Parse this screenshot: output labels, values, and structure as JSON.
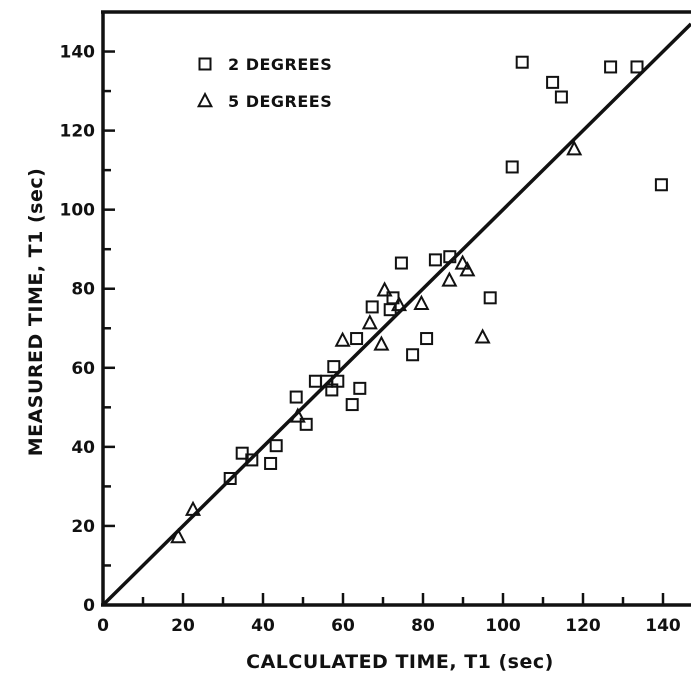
{
  "chart_data": {
    "type": "scatter",
    "xlabel": "CALCULATED TIME, T1 (sec)",
    "ylabel": "MEASURED TIME, T1 (sec)",
    "xlim": [
      0,
      147
    ],
    "ylim": [
      0,
      150
    ],
    "x_ticks": [
      0,
      20,
      40,
      60,
      80,
      100,
      120,
      140
    ],
    "y_ticks": [
      0,
      20,
      40,
      60,
      80,
      100,
      120,
      140
    ],
    "x_tick_labels": [
      "0",
      "20",
      "40",
      "60",
      "80",
      "100",
      "120",
      "140"
    ],
    "y_tick_labels": [
      "0",
      "20",
      "40",
      "60",
      "80",
      "100",
      "120",
      "140"
    ],
    "legend_position": "top-left",
    "reference_line": {
      "type": "identity",
      "from": [
        0,
        0
      ],
      "to": [
        147,
        147
      ]
    },
    "series": [
      {
        "name": "2 DEGREES",
        "marker": "square",
        "points": [
          [
            31.8,
            32
          ],
          [
            34.8,
            38.4
          ],
          [
            37.2,
            36.7
          ],
          [
            41.9,
            35.8
          ],
          [
            43.3,
            40.3
          ],
          [
            48.3,
            52.6
          ],
          [
            50.8,
            45.7
          ],
          [
            53.1,
            56.6
          ],
          [
            55.9,
            56.6
          ],
          [
            57.7,
            60.3
          ],
          [
            57.2,
            54.4
          ],
          [
            58.7,
            56.6
          ],
          [
            62.3,
            50.7
          ],
          [
            63.4,
            67.4
          ],
          [
            64.2,
            54.8
          ],
          [
            67.3,
            75.4
          ],
          [
            71.8,
            74.7
          ],
          [
            72.5,
            77.7
          ],
          [
            74.6,
            86.5
          ],
          [
            77.4,
            63.3
          ],
          [
            80.9,
            67.4
          ],
          [
            83.1,
            87.3
          ],
          [
            86.7,
            88.1
          ],
          [
            96.8,
            77.7
          ],
          [
            102.3,
            110.8
          ],
          [
            104.8,
            137.3
          ],
          [
            112.4,
            132.2
          ],
          [
            114.6,
            128.5
          ],
          [
            126.9,
            136.1
          ],
          [
            133.5,
            136.1
          ],
          [
            139.6,
            106.3
          ]
        ]
      },
      {
        "name": "5 DEGREES",
        "marker": "triangle",
        "points": [
          [
            18.8,
            17.2
          ],
          [
            22.5,
            24.1
          ],
          [
            48.7,
            47.7
          ],
          [
            59.9,
            66.9
          ],
          [
            66.7,
            71.3
          ],
          [
            69.6,
            65.9
          ],
          [
            70.4,
            79.6
          ],
          [
            74.0,
            75.9
          ],
          [
            79.6,
            76.2
          ],
          [
            86.6,
            82.1
          ],
          [
            89.9,
            86.4
          ],
          [
            91.1,
            84.7
          ],
          [
            94.9,
            67.7
          ],
          [
            117.8,
            115.3
          ]
        ]
      }
    ]
  }
}
